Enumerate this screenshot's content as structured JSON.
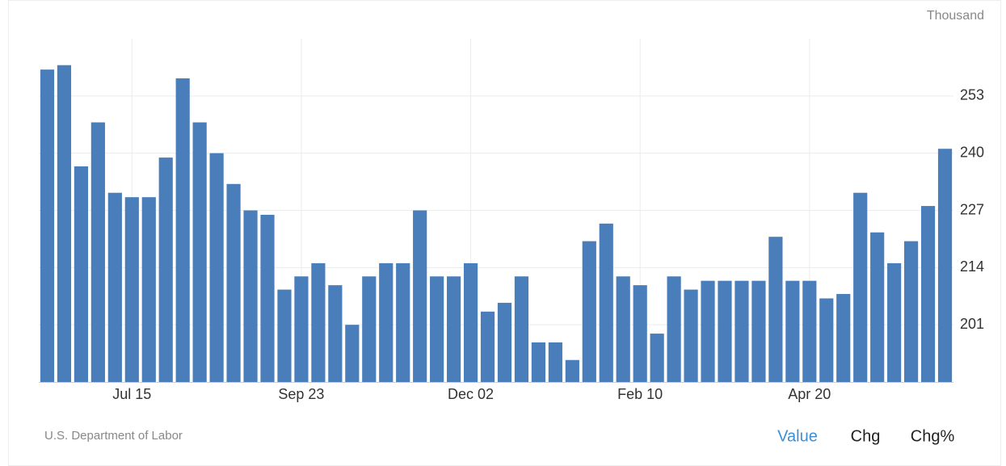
{
  "chart_data": {
    "type": "bar",
    "unit_label": "Thousand",
    "source": "U.S. Department of Labor",
    "tabs": [
      "Value",
      "Chg",
      "Chg%"
    ],
    "active_tab": 0,
    "color": "#4a7ebb",
    "grid": true,
    "categories": [
      null,
      null,
      null,
      null,
      null,
      "Jul 15",
      null,
      null,
      null,
      null,
      null,
      null,
      null,
      null,
      null,
      "Sep 23",
      null,
      null,
      null,
      null,
      null,
      null,
      null,
      null,
      null,
      "Dec 02",
      null,
      null,
      null,
      null,
      null,
      null,
      null,
      null,
      null,
      "Feb 10",
      null,
      null,
      null,
      null,
      null,
      null,
      null,
      null,
      null,
      "Apr 20",
      null,
      null,
      null,
      null,
      null,
      null,
      null,
      null
    ],
    "values": [
      259,
      260,
      237,
      247,
      231,
      230,
      230,
      239,
      257,
      247,
      240,
      233,
      227,
      226,
      209,
      212,
      215,
      210,
      201,
      212,
      215,
      215,
      227,
      212,
      212,
      215,
      204,
      206,
      212,
      197,
      197,
      193,
      220,
      224,
      212,
      210,
      199,
      212,
      209,
      211,
      211,
      211,
      211,
      221,
      211,
      211,
      207,
      208,
      231,
      222,
      215,
      220,
      228,
      241
    ],
    "ylim": [
      188,
      266
    ],
    "yticks": [
      201,
      214,
      227,
      240,
      253
    ]
  }
}
